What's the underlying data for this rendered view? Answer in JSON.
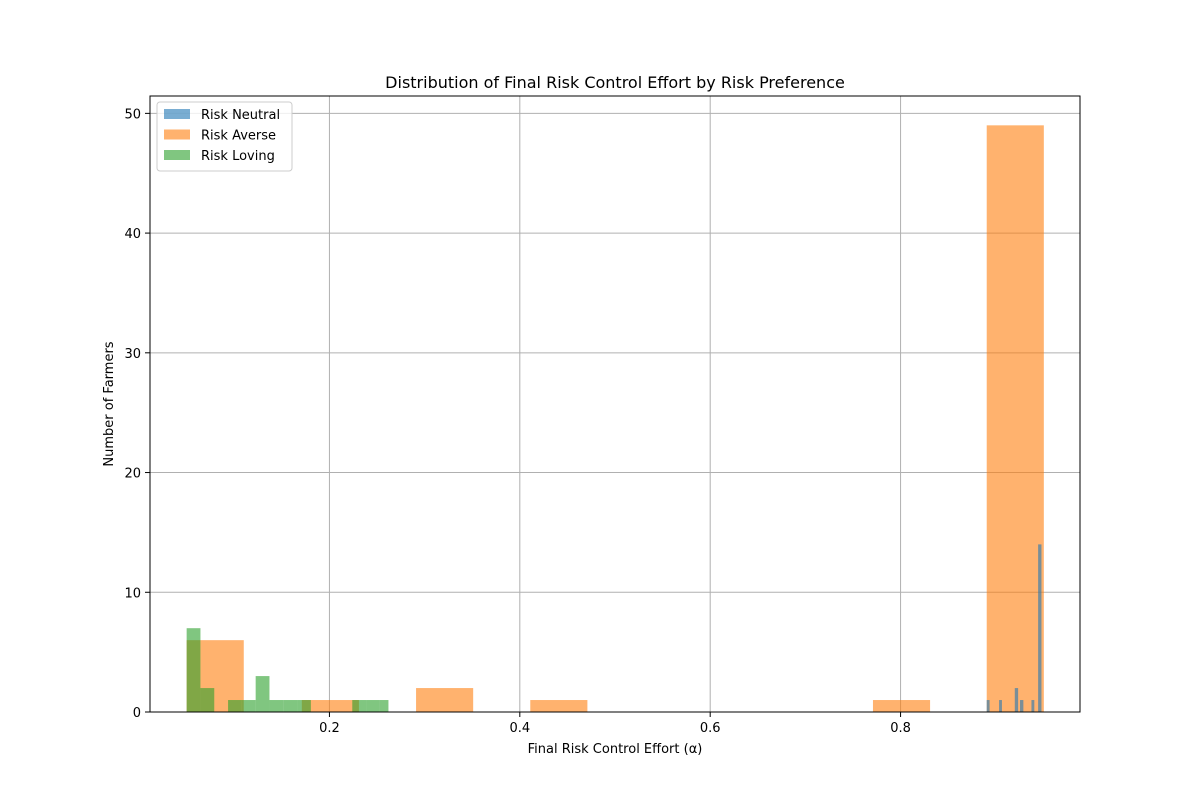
{
  "chart_data": {
    "type": "bar",
    "title": "Distribution of Final Risk Control Effort by Risk Preference",
    "xlabel": "Final Risk Control Effort (α)",
    "ylabel": "Number of Farmers",
    "xlim": [
      0.0115,
      0.9885
    ],
    "ylim": [
      0,
      51.45
    ],
    "xticks": [
      0.2,
      0.4,
      0.6,
      0.8
    ],
    "xtick_labels": [
      "0.2",
      "0.4",
      "0.6",
      "0.8"
    ],
    "yticks": [
      0,
      10,
      20,
      30,
      40,
      50
    ],
    "ytick_labels": [
      "0",
      "10",
      "20",
      "30",
      "40",
      "50"
    ],
    "grid": true,
    "legend_position": "top-left",
    "series": [
      {
        "name": "Risk Neutral",
        "color": "#1f77b4",
        "opacity": 0.6,
        "bins": [
          {
            "x0": 0.8905,
            "x1": 0.8935,
            "count": 1
          },
          {
            "x0": 0.9035,
            "x1": 0.9065,
            "count": 1
          },
          {
            "x0": 0.92,
            "x1": 0.9235,
            "count": 2
          },
          {
            "x0": 0.9255,
            "x1": 0.929,
            "count": 1
          },
          {
            "x0": 0.9375,
            "x1": 0.9405,
            "count": 1
          },
          {
            "x0": 0.9445,
            "x1": 0.948,
            "count": 14
          }
        ]
      },
      {
        "name": "Risk Averse",
        "color": "#ff7f0e",
        "opacity": 0.6,
        "bins": [
          {
            "x0": 0.05,
            "x1": 0.065,
            "count": 6
          },
          {
            "x0": 0.065,
            "x1": 0.11,
            "count": 6
          },
          {
            "x0": 0.171,
            "x1": 0.231,
            "count": 1
          },
          {
            "x0": 0.291,
            "x1": 0.351,
            "count": 2
          },
          {
            "x0": 0.411,
            "x1": 0.471,
            "count": 1
          },
          {
            "x0": 0.771,
            "x1": 0.831,
            "count": 1
          },
          {
            "x0": 0.8905,
            "x1": 0.9505,
            "count": 49
          }
        ]
      },
      {
        "name": "Risk Loving",
        "color": "#2ca02c",
        "opacity": 0.6,
        "bins": [
          {
            "x0": 0.05,
            "x1": 0.0645,
            "count": 7
          },
          {
            "x0": 0.0645,
            "x1": 0.079,
            "count": 2
          },
          {
            "x0": 0.0935,
            "x1": 0.108,
            "count": 1
          },
          {
            "x0": 0.108,
            "x1": 0.1225,
            "count": 1
          },
          {
            "x0": 0.1225,
            "x1": 0.137,
            "count": 3
          },
          {
            "x0": 0.137,
            "x1": 0.1515,
            "count": 1
          },
          {
            "x0": 0.1515,
            "x1": 0.166,
            "count": 1
          },
          {
            "x0": 0.166,
            "x1": 0.1805,
            "count": 1
          },
          {
            "x0": 0.224,
            "x1": 0.2385,
            "count": 1
          },
          {
            "x0": 0.2385,
            "x1": 0.253,
            "count": 1
          },
          {
            "x0": 0.253,
            "x1": 0.262,
            "count": 1
          }
        ]
      }
    ]
  }
}
